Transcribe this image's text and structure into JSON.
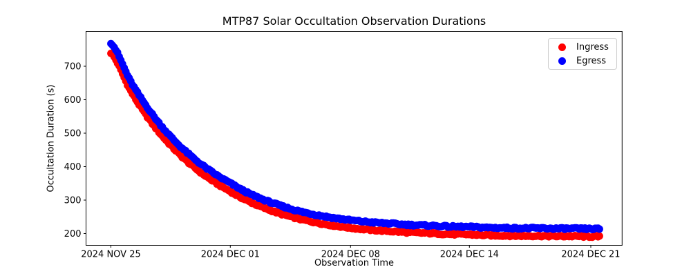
{
  "title": "MTP87 Solar Occultation Observation Durations",
  "axes": {
    "xlabel": "Observation Time",
    "ylabel": "Occultation Duration (s)"
  },
  "legend": {
    "position": "upper right",
    "items": [
      {
        "label": "Ingress",
        "color": "#ff0000",
        "marker": "circle-icon"
      },
      {
        "label": "Egress",
        "color": "#0000ff",
        "marker": "circle-icon"
      }
    ]
  },
  "chart_data": {
    "type": "scatter",
    "title": "MTP87 Solar Occultation Observation Durations",
    "xlabel": "Observation Time",
    "ylabel": "Occultation Duration (s)",
    "grid": false,
    "legend_position": "upper right",
    "x_unit": "days since 2024 NOV 25",
    "x_ticks": [
      {
        "label": "2024 NOV 25",
        "day": 0
      },
      {
        "label": "2024 DEC 01",
        "day": 6
      },
      {
        "label": "2024 DEC 08",
        "day": 13
      },
      {
        "label": "2024 DEC 14",
        "day": 19
      },
      {
        "label": "2024 DEC 21",
        "day": 26
      }
    ],
    "y_ticks": [
      200,
      300,
      400,
      500,
      600,
      700
    ],
    "ylim": [
      165,
      805
    ],
    "x_range_days": [
      0,
      26.5
    ],
    "points_per_day": 12,
    "marker_size_px": 11,
    "days": [
      0,
      1,
      2,
      3,
      4,
      5,
      6,
      7,
      8,
      9,
      10,
      11,
      12,
      13,
      14,
      15,
      16,
      17,
      18,
      19,
      20,
      21,
      22,
      23,
      24,
      25,
      26
    ],
    "series": [
      {
        "name": "Ingress",
        "color": "#ff0000",
        "values": [
          740,
          626,
          535,
          464,
          407,
          362,
          326,
          298,
          276,
          258,
          244,
          233,
          224,
          217,
          211,
          207,
          203,
          201,
          198,
          197,
          195,
          194,
          193,
          193,
          192,
          192,
          191
        ]
      },
      {
        "name": "Egress",
        "color": "#0000ff",
        "values": [
          770,
          654,
          563,
          490,
          433,
          387,
          351,
          322,
          300,
          282,
          267,
          256,
          247,
          240,
          234,
          230,
          226,
          224,
          221,
          220,
          218,
          217,
          216,
          216,
          215,
          215,
          214
        ]
      }
    ]
  }
}
